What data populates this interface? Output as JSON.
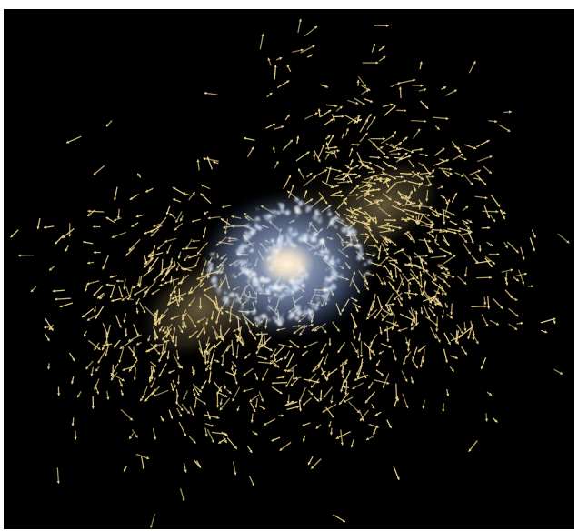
{
  "image": {
    "background_color": "#000000",
    "frame_color": "#ffffff",
    "galaxy": {
      "core_color": "#f3e3c8",
      "arm_color": "#c6d7ef",
      "outer_color": "#5f7fc4",
      "arm_count": 2
    },
    "stream": {
      "color": "#e6cf86",
      "glow_color": "#8a7a52",
      "lobes": [
        "upper-right",
        "lower-left"
      ],
      "marker": "arrow"
    }
  }
}
